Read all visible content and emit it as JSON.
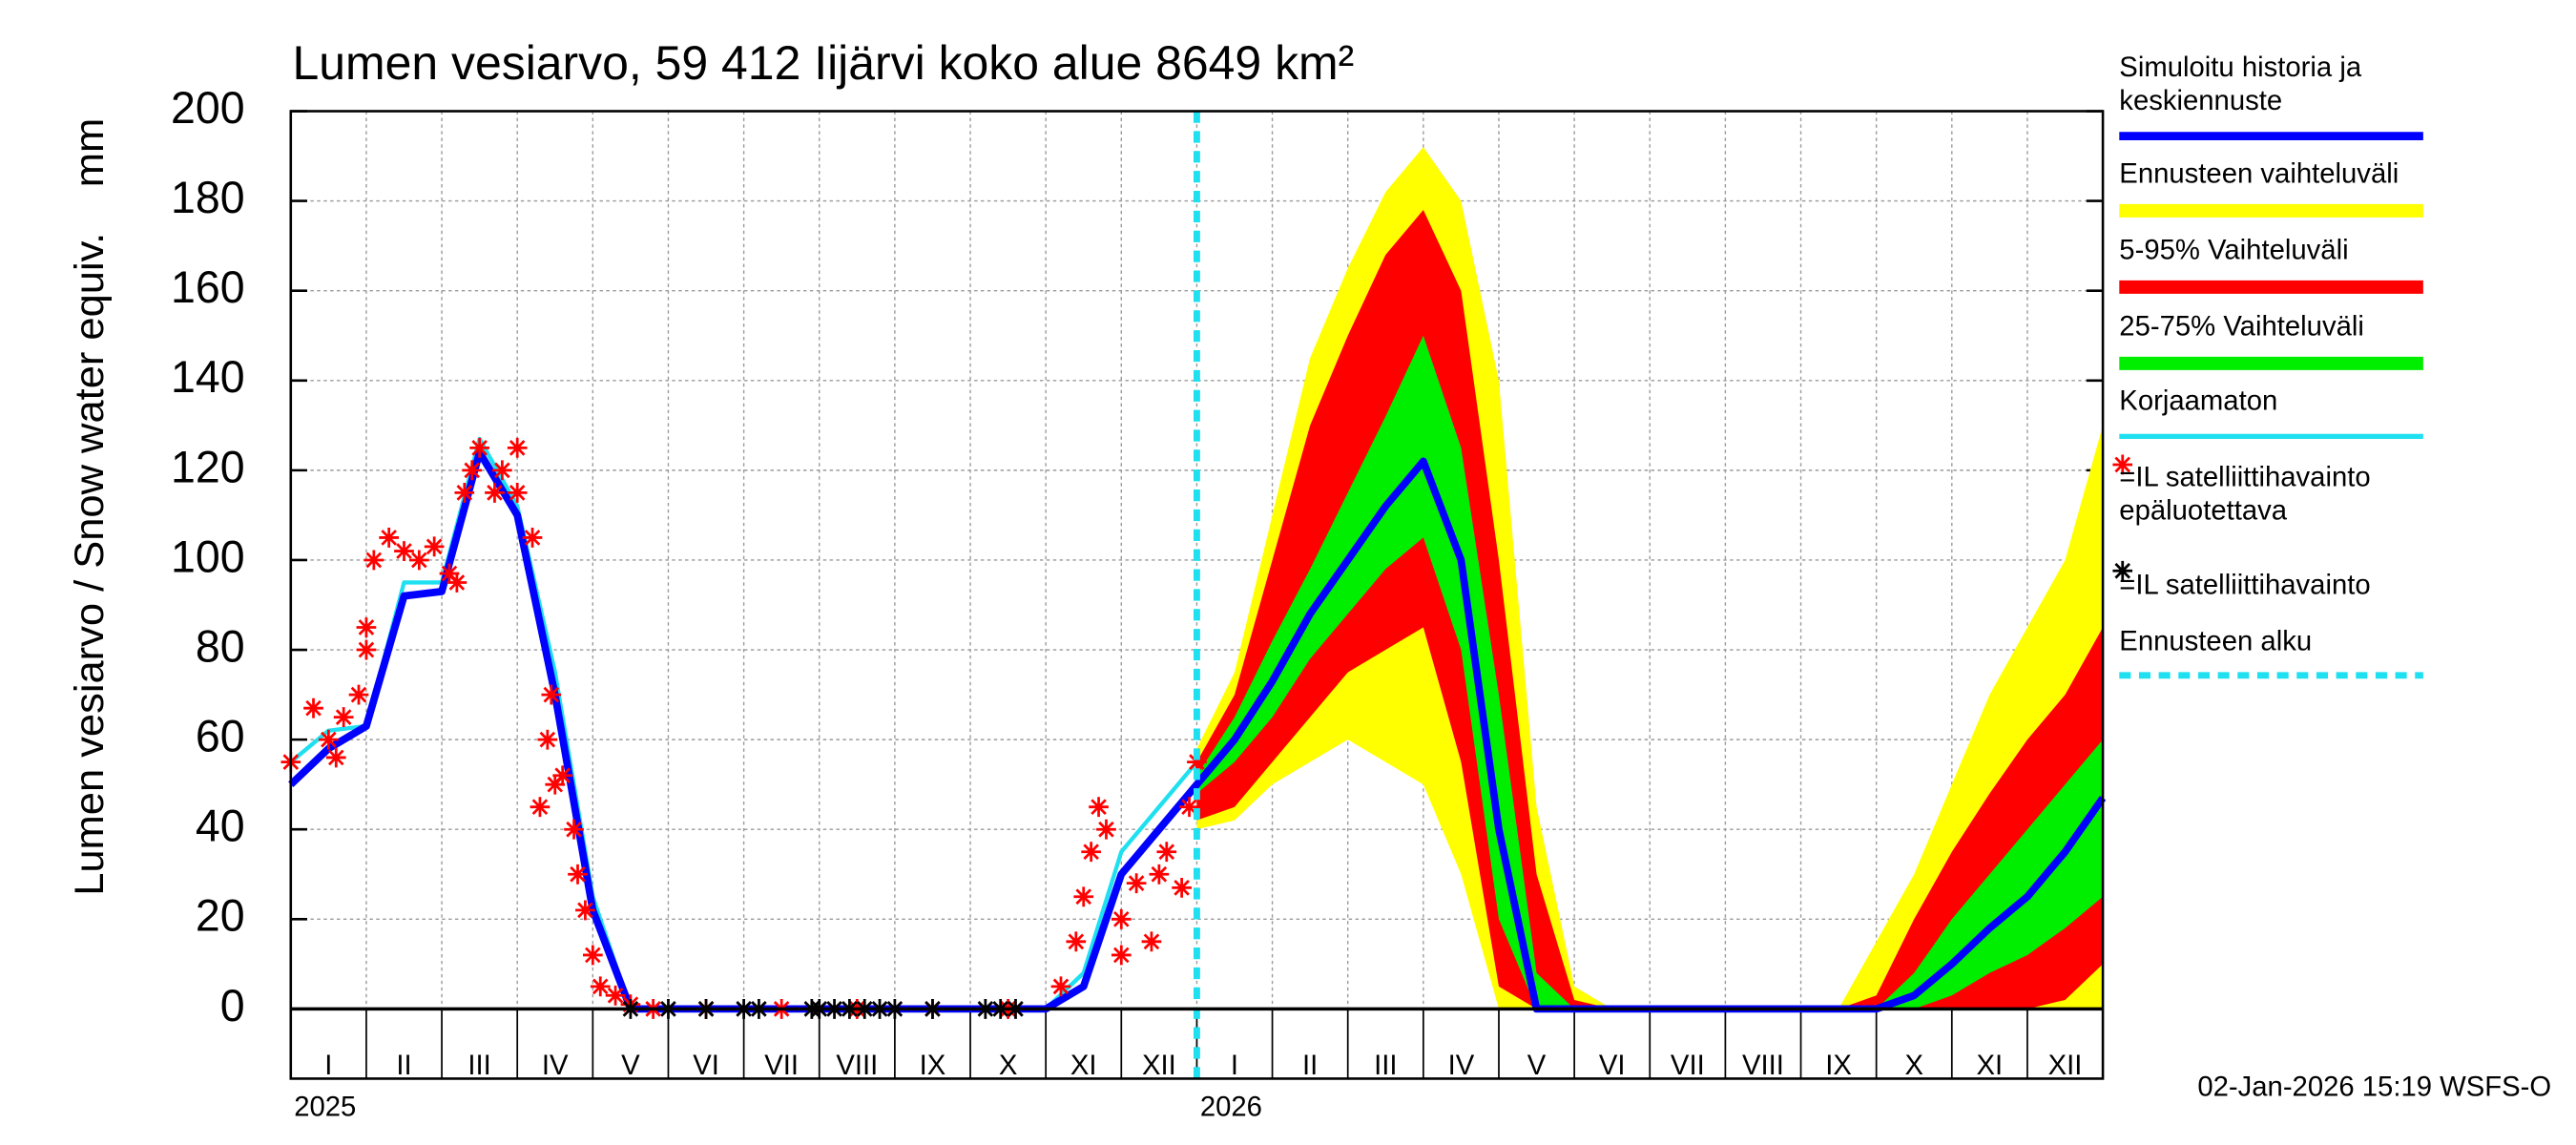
{
  "chart_data": {
    "type": "line",
    "title": "Lumen vesiarvo, 59 412 Iijärvi koko alue 8649 km²",
    "ylabel": "Lumen vesiarvo / Snow water equiv.",
    "yunit": "mm",
    "footer": "02-Jan-2026 15:19 WSFS-O",
    "grid": true,
    "xlim": [
      0,
      24
    ],
    "ylim": [
      0,
      200
    ],
    "yticks": [
      0,
      20,
      40,
      60,
      80,
      100,
      120,
      140,
      160,
      180,
      200
    ],
    "xticks": [
      0,
      1,
      2,
      3,
      4,
      5,
      6,
      7,
      8,
      9,
      10,
      11,
      12,
      13,
      14,
      15,
      16,
      17,
      18,
      19,
      20,
      21,
      22,
      23,
      24
    ],
    "month_labels": [
      {
        "value": 0.5,
        "label": "I"
      },
      {
        "value": 1.5,
        "label": "II"
      },
      {
        "value": 2.5,
        "label": "III"
      },
      {
        "value": 3.5,
        "label": "IV"
      },
      {
        "value": 4.5,
        "label": "V"
      },
      {
        "value": 5.5,
        "label": "VI"
      },
      {
        "value": 6.5,
        "label": "VII"
      },
      {
        "value": 7.5,
        "label": "VIII"
      },
      {
        "value": 8.5,
        "label": "IX"
      },
      {
        "value": 9.5,
        "label": "X"
      },
      {
        "value": 10.5,
        "label": "XI"
      },
      {
        "value": 11.5,
        "label": "XII"
      },
      {
        "value": 12.5,
        "label": "I"
      },
      {
        "value": 13.5,
        "label": "II"
      },
      {
        "value": 14.5,
        "label": "III"
      },
      {
        "value": 15.5,
        "label": "IV"
      },
      {
        "value": 16.5,
        "label": "V"
      },
      {
        "value": 17.5,
        "label": "VI"
      },
      {
        "value": 18.5,
        "label": "VII"
      },
      {
        "value": 19.5,
        "label": "VIII"
      },
      {
        "value": 20.5,
        "label": "IX"
      },
      {
        "value": 21.5,
        "label": "X"
      },
      {
        "value": 22.5,
        "label": "XI"
      },
      {
        "value": 23.5,
        "label": "XII"
      }
    ],
    "year_labels": [
      {
        "value": 0,
        "label": "2025"
      },
      {
        "value": 12,
        "label": "2026"
      }
    ],
    "bands": [
      {
        "name": "Ennusteen vaihteluväli",
        "color": "#ffff00",
        "x": [
          12,
          12.5,
          13,
          13.5,
          14,
          14.5,
          15,
          15.5,
          16,
          16.5,
          17,
          17.5,
          18,
          18.5,
          19,
          19.5,
          20,
          20.5,
          21,
          21.5,
          22,
          22.5,
          23,
          23.5,
          24
        ],
        "low": [
          40,
          42,
          50,
          55,
          60,
          55,
          50,
          30,
          0,
          0,
          0,
          0,
          0,
          0,
          0,
          0,
          0,
          0,
          0,
          0,
          0,
          0,
          0,
          0,
          0
        ],
        "high": [
          58,
          75,
          110,
          145,
          165,
          182,
          192,
          180,
          140,
          45,
          5,
          0,
          0,
          0,
          0,
          0,
          0,
          0,
          15,
          30,
          50,
          70,
          85,
          100,
          130
        ]
      },
      {
        "name": "5-95% Vaihteluväli",
        "color": "#ff0000",
        "x": [
          12,
          12.5,
          13,
          13.5,
          14,
          14.5,
          15,
          15.5,
          16,
          16.5,
          17,
          17.5,
          18,
          18.5,
          19,
          19.5,
          20,
          20.5,
          21,
          21.5,
          22,
          22.5,
          23,
          23.5,
          24
        ],
        "low": [
          42,
          45,
          55,
          65,
          75,
          80,
          85,
          55,
          5,
          0,
          0,
          0,
          0,
          0,
          0,
          0,
          0,
          0,
          0,
          0,
          0,
          0,
          0,
          2,
          10
        ],
        "high": [
          55,
          70,
          100,
          130,
          150,
          168,
          178,
          160,
          100,
          30,
          2,
          0,
          0,
          0,
          0,
          0,
          0,
          0,
          3,
          20,
          35,
          48,
          60,
          70,
          85
        ]
      },
      {
        "name": "25-75% Vaihteluväli",
        "color": "#00ee00",
        "x": [
          12,
          12.5,
          13,
          13.5,
          14,
          14.5,
          15,
          15.5,
          16,
          16.5,
          17,
          17.5,
          18,
          18.5,
          19,
          19.5,
          20,
          20.5,
          21,
          21.5,
          22,
          22.5,
          23,
          23.5,
          24
        ],
        "low": [
          48,
          55,
          65,
          78,
          88,
          98,
          105,
          80,
          20,
          0,
          0,
          0,
          0,
          0,
          0,
          0,
          0,
          0,
          0,
          0,
          3,
          8,
          12,
          18,
          25
        ],
        "high": [
          52,
          65,
          82,
          98,
          115,
          132,
          150,
          125,
          70,
          8,
          0,
          0,
          0,
          0,
          0,
          0,
          0,
          0,
          0,
          8,
          20,
          30,
          40,
          50,
          60
        ]
      }
    ],
    "series": [
      {
        "name": "Simuloitu historia ja keskiennuste",
        "color": "#0000ff",
        "x": [
          0,
          0.5,
          1,
          1.5,
          2,
          2.5,
          3,
          3.5,
          4,
          4.5,
          5,
          5.5,
          6,
          6.5,
          7,
          7.5,
          8,
          8.5,
          9,
          9.5,
          10,
          10.5,
          11,
          11.5,
          12,
          12.5,
          13,
          13.5,
          14,
          14.5,
          15,
          15.5,
          16,
          16.5,
          17,
          17.5,
          18,
          18.5,
          19,
          19.5,
          20,
          20.5,
          21,
          21.5,
          22,
          22.5,
          23,
          23.5,
          24
        ],
        "values": [
          50,
          58,
          63,
          92,
          93,
          124,
          110,
          70,
          22,
          0,
          0,
          0,
          0,
          0,
          0,
          0,
          0,
          0,
          0,
          0,
          0,
          5,
          30,
          40,
          50,
          60,
          73,
          88,
          100,
          112,
          122,
          100,
          40,
          0,
          0,
          0,
          0,
          0,
          0,
          0,
          0,
          0,
          0,
          3,
          10,
          18,
          25,
          35,
          47
        ]
      },
      {
        "name": "Korjaamaton",
        "color": "#1ee0f0",
        "x": [
          0,
          0.5,
          1,
          1.5,
          2,
          2.5,
          3,
          3.5,
          4,
          4.5,
          5,
          5.5,
          6,
          6.5,
          7,
          7.5,
          8,
          8.5,
          9,
          9.5,
          10,
          10.5,
          11,
          11.5,
          12
        ],
        "values": [
          55,
          62,
          63,
          95,
          95,
          127,
          112,
          75,
          25,
          0,
          0,
          0,
          0,
          0,
          0,
          0,
          0,
          0,
          0,
          0,
          0,
          8,
          35,
          45,
          55
        ]
      }
    ],
    "observations": [
      {
        "name": "=IL satelliittihavainto epäluotettava",
        "color": "#ff0000",
        "x": [
          0,
          0.3,
          0.5,
          0.6,
          0.7,
          0.9,
          1,
          1,
          1.1,
          1.3,
          1.5,
          1.7,
          1.9,
          2.1,
          2.2,
          2.3,
          2.4,
          2.5,
          2.7,
          2.8,
          3,
          3,
          3.2,
          3.3,
          3.4,
          3.45,
          3.5,
          3.6,
          3.75,
          3.8,
          3.9,
          4,
          4.1,
          4.3,
          4.5,
          4.8,
          5.5,
          6.5,
          7.5,
          8.5,
          9.5,
          10.2,
          10.4,
          10.5,
          10.6,
          10.7,
          10.8,
          11,
          11,
          11.2,
          11.4,
          11.5,
          11.6,
          11.8,
          11.9,
          12
        ],
        "values": [
          55,
          67,
          60,
          56,
          65,
          70,
          80,
          85,
          100,
          105,
          102,
          100,
          103,
          97,
          95,
          115,
          120,
          125,
          115,
          120,
          115,
          125,
          105,
          45,
          60,
          70,
          50,
          52,
          40,
          30,
          22,
          12,
          5,
          3,
          1,
          0,
          0,
          0,
          0,
          0,
          0,
          5,
          15,
          25,
          35,
          45,
          40,
          20,
          12,
          28,
          15,
          30,
          35,
          27,
          45,
          55
        ]
      },
      {
        "name": "=IL satelliittihavainto",
        "color": "#000000",
        "x": [
          4.5,
          5,
          5.5,
          6,
          6.2,
          6.9,
          7,
          7.2,
          7.4,
          7.6,
          7.8,
          8,
          8.5,
          9.2,
          9.4,
          9.6
        ],
        "values": [
          0,
          0,
          0,
          0,
          0,
          0,
          0,
          0,
          0,
          0,
          0,
          0,
          0,
          0,
          0,
          0
        ]
      }
    ],
    "forecast_start": {
      "name": "Ennusteen alku",
      "color": "#1ee0f0",
      "value": 12
    }
  }
}
